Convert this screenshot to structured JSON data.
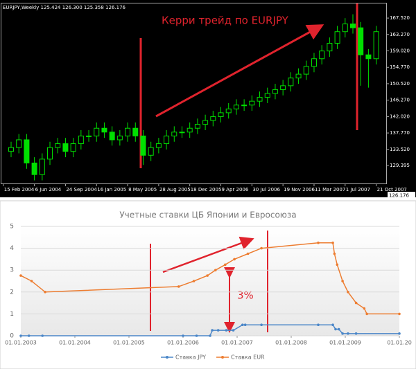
{
  "chart_data": [
    {
      "type": "candlestick",
      "header": "EURJPY,Weekly  125.424 126.300 125.358 126.176",
      "annotation": "Керри трейд по EURJPY",
      "current_price": "126.176",
      "color": "#00e000",
      "x": [
        4,
        8,
        12,
        16,
        20,
        24,
        28,
        32,
        36,
        40,
        44,
        48,
        52,
        56,
        60,
        64,
        68,
        72,
        76,
        80,
        84,
        88,
        92,
        96,
        100,
        104,
        108,
        112,
        116,
        120,
        124,
        128,
        132,
        136,
        140,
        144,
        148,
        152,
        156,
        160,
        164,
        168,
        172,
        176,
        180,
        184,
        188,
        192
      ],
      "open": [
        133,
        134,
        136,
        130,
        127,
        131,
        134,
        135,
        133,
        135,
        137,
        137,
        139,
        138,
        136,
        137,
        139,
        137,
        132,
        134,
        135,
        137,
        138,
        138,
        139,
        140,
        141,
        142,
        143,
        144,
        145,
        145,
        146,
        147,
        148,
        149,
        150,
        152,
        153,
        155,
        157,
        159,
        161,
        164,
        166,
        165,
        158,
        157
      ],
      "high": [
        135.5,
        137.5,
        137.5,
        131.5,
        132.5,
        135.5,
        136.5,
        136.5,
        136.5,
        138.5,
        138.5,
        140.5,
        140.5,
        139.5,
        138.5,
        140.5,
        140.5,
        138.5,
        135.5,
        136.5,
        138.5,
        139.5,
        139.5,
        140.5,
        141.5,
        142.5,
        143.5,
        144.5,
        145.5,
        146.5,
        146.5,
        147.5,
        148.5,
        149.5,
        150.5,
        151.5,
        153.5,
        154.5,
        156.5,
        158.5,
        160.5,
        162.5,
        165.5,
        167.5,
        168.5,
        166.5,
        159.5,
        165.5
      ],
      "low": [
        131.5,
        132.5,
        128.5,
        125.5,
        125.5,
        129.5,
        132.5,
        131.5,
        131.5,
        133.5,
        135.5,
        135.5,
        136.5,
        134.5,
        134.5,
        135.5,
        135.5,
        129.5,
        130.5,
        132.5,
        133.5,
        135.5,
        136.5,
        136.5,
        137.5,
        138.5,
        139.5,
        140.5,
        141.5,
        142.5,
        143.5,
        143.5,
        144.5,
        145.5,
        146.5,
        147.5,
        148.5,
        150.5,
        151.5,
        153.5,
        155.5,
        157.5,
        159.5,
        162.5,
        163.5,
        150,
        149.5,
        155.5
      ],
      "close": [
        134,
        136,
        130,
        127,
        131,
        134,
        135,
        133,
        135,
        137,
        137,
        139,
        138,
        136,
        137,
        139,
        137,
        132,
        134,
        135,
        137,
        138,
        138,
        139,
        140,
        141,
        142,
        143,
        144,
        145,
        145,
        146,
        147,
        148,
        149,
        150,
        152,
        153,
        155,
        157,
        159,
        161,
        164,
        166,
        165,
        158,
        157,
        164
      ],
      "xlim": [
        -1,
        197.5
      ],
      "xticks": [
        {
          "value": 0,
          "label": "15 Feb 2004"
        },
        {
          "value": 16,
          "label": "6 Jun 2004"
        },
        {
          "value": 32,
          "label": "24 Sep 2004"
        },
        {
          "value": 48,
          "label": "16 Jan 2005"
        },
        {
          "value": 64,
          "label": "8 May 2005"
        },
        {
          "value": 80,
          "label": "28 Aug 2005"
        },
        {
          "value": 96,
          "label": "18 Dec 2005"
        },
        {
          "value": 112,
          "label": "9 Apr 2006"
        },
        {
          "value": 128,
          "label": "30 Jul 2006"
        },
        {
          "value": 144,
          "label": "19 Nov 2006"
        },
        {
          "value": 160,
          "label": "11 Mar 2007"
        },
        {
          "value": 176,
          "label": "1 Jul 2007"
        },
        {
          "value": 192,
          "label": "21 Oct 2007"
        }
      ],
      "ylim": [
        124.7,
        171.3
      ],
      "yticks": [
        {
          "value": 129.395,
          "label": "129.395"
        },
        {
          "value": 133.52,
          "label": "133.520"
        },
        {
          "value": 137.77,
          "label": "137.770"
        },
        {
          "value": 142.02,
          "label": "142.020"
        },
        {
          "value": 146.27,
          "label": "146.270"
        },
        {
          "value": 150.52,
          "label": "150.520"
        },
        {
          "value": 154.77,
          "label": "154.770"
        },
        {
          "value": 159.02,
          "label": "159.020"
        },
        {
          "value": 163.27,
          "label": "163.270"
        },
        {
          "value": 167.52,
          "label": "167.520"
        }
      ]
    },
    {
      "type": "line",
      "title": "Учетные ставки ЦБ Японии и Евросоюза",
      "annotation": "3%",
      "xlim": [
        2003,
        2010
      ],
      "xticks": [
        {
          "value": 2003,
          "label": "01.01.2003"
        },
        {
          "value": 2004,
          "label": "01.01.2004"
        },
        {
          "value": 2005,
          "label": "01.01.2005"
        },
        {
          "value": 2006,
          "label": "01.01.2006"
        },
        {
          "value": 2007,
          "label": "01.01.2007"
        },
        {
          "value": 2008,
          "label": "01.01.2008"
        },
        {
          "value": 2009,
          "label": "01.01.2009"
        },
        {
          "value": 2010,
          "label": "01.01.20"
        }
      ],
      "ylim": [
        0,
        5
      ],
      "yticks": [
        0,
        1,
        2,
        3,
        4,
        5
      ],
      "grid": true,
      "legend": "bottom",
      "series": [
        {
          "name": "Ставка JPY",
          "color": "#4a86c8",
          "x": [
            2003.0,
            2003.15,
            2003.4,
            2006.0,
            2006.25,
            2006.5,
            2006.54,
            2006.65,
            2006.8,
            2006.93,
            2007.1,
            2007.15,
            2007.45,
            2008.5,
            2008.77,
            2008.82,
            2008.88,
            2008.95,
            2009.05,
            2009.2,
            2010.0
          ],
          "values": [
            0,
            0,
            0,
            0,
            0,
            0,
            0.25,
            0.25,
            0.25,
            0.25,
            0.5,
            0.5,
            0.5,
            0.5,
            0.5,
            0.3,
            0.3,
            0.1,
            0.1,
            0.1,
            0.1
          ]
        },
        {
          "name": "Ставка EUR",
          "color": "#ed7d31",
          "x": [
            2003.0,
            2003.2,
            2003.45,
            2005.92,
            2006.2,
            2006.45,
            2006.6,
            2006.78,
            2006.95,
            2007.2,
            2007.45,
            2008.5,
            2008.77,
            2008.8,
            2008.85,
            2008.95,
            2009.05,
            2009.2,
            2009.35,
            2009.4,
            2010.0
          ],
          "values": [
            2.75,
            2.5,
            2.0,
            2.25,
            2.5,
            2.75,
            3.0,
            3.25,
            3.5,
            3.75,
            4.0,
            4.25,
            4.25,
            3.75,
            3.25,
            2.5,
            2.0,
            1.5,
            1.25,
            1.0,
            1.0
          ]
        }
      ]
    }
  ]
}
